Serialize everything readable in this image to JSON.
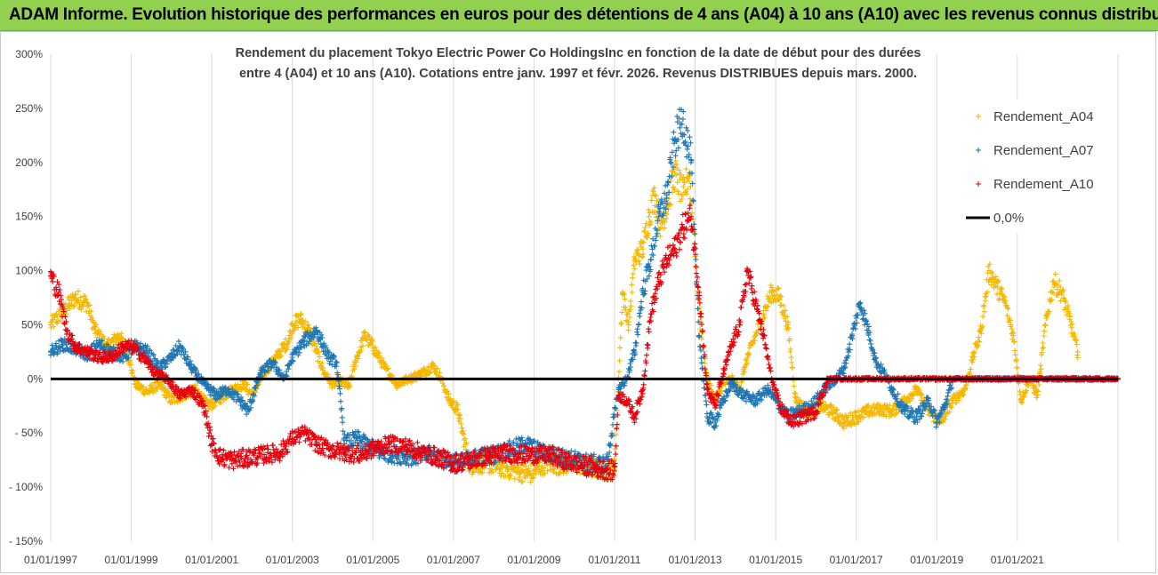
{
  "banner": {
    "title": "ADAM Informe. Evolution historique des performances en euros pour des détentions de 4 ans (A04) à 10 ans (A10) avec les revenus connus distribués",
    "background": "#92d050"
  },
  "chart_data": {
    "type": "scatter",
    "title_line1": "Rendement du placement Tokyo Electric Power Co HoldingsInc en fonction de la date de début pour des durées",
    "title_line2": "entre 4 (A04) et 10 ans (A10). Cotations entre janv. 1997 et févr.  2026. Revenus DISTRIBUES depuis mars. 2000.",
    "x_axis": {
      "type": "date",
      "range": [
        1997.0,
        2023.5
      ],
      "tick_years": [
        1997,
        1999,
        2001,
        2003,
        2005,
        2007,
        2009,
        2011,
        2013,
        2015,
        2017,
        2019,
        2021
      ],
      "tick_labels": [
        "01/01/1997",
        "01/01/1999",
        "01/01/2001",
        "01/01/2003",
        "01/01/2005",
        "01/01/2007",
        "01/01/2009",
        "01/01/2011",
        "01/01/2013",
        "01/01/2015",
        "01/01/2017",
        "01/01/2019",
        "01/01/2021"
      ]
    },
    "y_axis": {
      "range": [
        -150,
        300
      ],
      "ticks": [
        300,
        250,
        200,
        150,
        100,
        50,
        0,
        -50,
        -100,
        -150
      ],
      "tick_labels": [
        "300%",
        "250%",
        "200%",
        "150%",
        "100%",
        "50%",
        "0%",
        "- 50%",
        "- 100%",
        "- 150%"
      ]
    },
    "grid": "vertical",
    "legend_position": "top-right",
    "reference_line": {
      "name": "0,0%",
      "value": 0,
      "color": "#000000"
    },
    "series": [
      {
        "name": "Rendement_A04",
        "color": "#f5b800",
        "points": [
          [
            1997.0,
            50
          ],
          [
            1997.3,
            62
          ],
          [
            1997.6,
            75
          ],
          [
            1997.9,
            70
          ],
          [
            1998.1,
            45
          ],
          [
            1998.4,
            30
          ],
          [
            1998.7,
            40
          ],
          [
            1998.9,
            25
          ],
          [
            1999.1,
            -5
          ],
          [
            1999.4,
            -12
          ],
          [
            1999.7,
            -5
          ],
          [
            2000.0,
            -20
          ],
          [
            2000.3,
            -15
          ],
          [
            2000.6,
            -10
          ],
          [
            2000.9,
            -25
          ],
          [
            2001.2,
            -18
          ],
          [
            2001.5,
            -10
          ],
          [
            2001.8,
            -5
          ],
          [
            2002.0,
            -15
          ],
          [
            2002.3,
            5
          ],
          [
            2002.6,
            20
          ],
          [
            2002.9,
            35
          ],
          [
            2003.0,
            50
          ],
          [
            2003.2,
            55
          ],
          [
            2003.4,
            45
          ],
          [
            2003.6,
            25
          ],
          [
            2003.8,
            5
          ],
          [
            2004.0,
            -5
          ],
          [
            2004.2,
            -2
          ],
          [
            2004.4,
            -8
          ],
          [
            2004.6,
            20
          ],
          [
            2004.8,
            40
          ],
          [
            2005.0,
            30
          ],
          [
            2005.3,
            10
          ],
          [
            2005.6,
            -5
          ],
          [
            2005.9,
            0
          ],
          [
            2006.2,
            5
          ],
          [
            2006.5,
            12
          ],
          [
            2006.7,
            0
          ],
          [
            2006.9,
            -20
          ],
          [
            2007.1,
            -28
          ],
          [
            2007.4,
            -80
          ],
          [
            2007.8,
            -78
          ],
          [
            2008.2,
            -82
          ],
          [
            2008.6,
            -85
          ],
          [
            2008.9,
            -88
          ],
          [
            2009.3,
            -78
          ],
          [
            2009.7,
            -80
          ],
          [
            2010.0,
            -78
          ],
          [
            2010.4,
            -82
          ],
          [
            2010.8,
            -85
          ],
          [
            2011.0,
            -82
          ],
          [
            2011.1,
            0
          ],
          [
            2011.2,
            80
          ],
          [
            2011.35,
            50
          ],
          [
            2011.5,
            110
          ],
          [
            2011.7,
            120
          ],
          [
            2011.85,
            150
          ],
          [
            2012.0,
            170
          ],
          [
            2012.15,
            140
          ],
          [
            2012.3,
            160
          ],
          [
            2012.5,
            190
          ],
          [
            2012.7,
            170
          ],
          [
            2012.85,
            190
          ],
          [
            2013.0,
            120
          ],
          [
            2013.1,
            60
          ],
          [
            2013.3,
            0
          ],
          [
            2013.5,
            -20
          ],
          [
            2013.7,
            -5
          ],
          [
            2013.9,
            0
          ],
          [
            2014.1,
            -10
          ],
          [
            2014.3,
            20
          ],
          [
            2014.5,
            40
          ],
          [
            2014.7,
            60
          ],
          [
            2014.9,
            80
          ],
          [
            2015.1,
            75
          ],
          [
            2015.3,
            50
          ],
          [
            2015.5,
            -20
          ],
          [
            2015.8,
            -30
          ],
          [
            2016.1,
            -25
          ],
          [
            2016.4,
            -30
          ],
          [
            2016.7,
            -40
          ],
          [
            2017.0,
            -35
          ],
          [
            2017.3,
            -30
          ],
          [
            2017.6,
            -28
          ],
          [
            2017.9,
            -30
          ],
          [
            2018.2,
            -20
          ],
          [
            2018.5,
            -10
          ],
          [
            2018.8,
            -30
          ],
          [
            2019.1,
            -40
          ],
          [
            2019.4,
            -20
          ],
          [
            2019.7,
            -10
          ],
          [
            2019.9,
            20
          ],
          [
            2020.1,
            45
          ],
          [
            2020.3,
            100
          ],
          [
            2020.5,
            85
          ],
          [
            2020.7,
            70
          ],
          [
            2020.9,
            40
          ],
          [
            2021.1,
            -20
          ],
          [
            2021.3,
            0
          ],
          [
            2021.5,
            -15
          ],
          [
            2021.7,
            50
          ],
          [
            2021.9,
            90
          ],
          [
            2022.1,
            80
          ],
          [
            2022.3,
            55
          ],
          [
            2022.5,
            25
          ]
        ]
      },
      {
        "name": "Rendement_A07",
        "color": "#1f77b4",
        "points": [
          [
            1997.0,
            25
          ],
          [
            1997.3,
            32
          ],
          [
            1997.6,
            28
          ],
          [
            1997.9,
            22
          ],
          [
            1998.2,
            32
          ],
          [
            1998.5,
            25
          ],
          [
            1998.8,
            20
          ],
          [
            1999.1,
            30
          ],
          [
            1999.4,
            25
          ],
          [
            1999.7,
            10
          ],
          [
            2000.0,
            20
          ],
          [
            2000.2,
            30
          ],
          [
            2000.5,
            10
          ],
          [
            2000.8,
            -5
          ],
          [
            2001.1,
            -15
          ],
          [
            2001.4,
            -10
          ],
          [
            2001.7,
            -20
          ],
          [
            2001.9,
            -30
          ],
          [
            2002.2,
            5
          ],
          [
            2002.5,
            15
          ],
          [
            2002.8,
            0
          ],
          [
            2003.0,
            20
          ],
          [
            2003.3,
            35
          ],
          [
            2003.6,
            45
          ],
          [
            2003.9,
            20
          ],
          [
            2004.1,
            15
          ],
          [
            2004.3,
            -60
          ],
          [
            2004.6,
            -55
          ],
          [
            2004.9,
            -62
          ],
          [
            2005.2,
            -68
          ],
          [
            2005.6,
            -70
          ],
          [
            2006.0,
            -72
          ],
          [
            2006.4,
            -70
          ],
          [
            2006.8,
            -75
          ],
          [
            2007.2,
            -78
          ],
          [
            2007.6,
            -72
          ],
          [
            2008.0,
            -70
          ],
          [
            2008.4,
            -65
          ],
          [
            2008.8,
            -60
          ],
          [
            2009.2,
            -68
          ],
          [
            2009.6,
            -72
          ],
          [
            2010.0,
            -75
          ],
          [
            2010.4,
            -78
          ],
          [
            2010.8,
            -80
          ],
          [
            2011.1,
            -10
          ],
          [
            2011.3,
            0
          ],
          [
            2011.5,
            25
          ],
          [
            2011.7,
            80
          ],
          [
            2011.9,
            110
          ],
          [
            2012.1,
            150
          ],
          [
            2012.3,
            170
          ],
          [
            2012.5,
            220
          ],
          [
            2012.7,
            240
          ],
          [
            2012.9,
            200
          ],
          [
            2013.1,
            40
          ],
          [
            2013.3,
            -35
          ],
          [
            2013.5,
            -40
          ],
          [
            2013.7,
            -20
          ],
          [
            2013.9,
            -5
          ],
          [
            2014.2,
            -15
          ],
          [
            2014.5,
            -20
          ],
          [
            2014.8,
            -10
          ],
          [
            2015.0,
            -20
          ],
          [
            2015.3,
            -35
          ],
          [
            2015.6,
            -30
          ],
          [
            2015.9,
            -25
          ],
          [
            2016.2,
            -10
          ],
          [
            2016.5,
            0
          ],
          [
            2016.7,
            10
          ],
          [
            2016.9,
            40
          ],
          [
            2017.1,
            70
          ],
          [
            2017.3,
            45
          ],
          [
            2017.5,
            15
          ],
          [
            2017.7,
            5
          ],
          [
            2017.9,
            -10
          ],
          [
            2018.2,
            -30
          ],
          [
            2018.5,
            -35
          ],
          [
            2018.8,
            -20
          ],
          [
            2019.0,
            -40
          ],
          [
            2019.2,
            -25
          ],
          [
            2019.4,
            0
          ],
          [
            2019.7,
            0
          ],
          [
            2020.0,
            0
          ],
          [
            2020.4,
            0
          ],
          [
            2020.8,
            0
          ],
          [
            2021.2,
            0
          ],
          [
            2021.6,
            0
          ],
          [
            2022.0,
            0
          ],
          [
            2022.4,
            0
          ],
          [
            2022.8,
            0
          ],
          [
            2023.2,
            0
          ],
          [
            2023.5,
            0
          ]
        ]
      },
      {
        "name": "Rendement_A10",
        "color": "#e8000b",
        "points": [
          [
            1997.0,
            95
          ],
          [
            1997.2,
            80
          ],
          [
            1997.4,
            45
          ],
          [
            1997.6,
            30
          ],
          [
            1997.9,
            25
          ],
          [
            1998.2,
            20
          ],
          [
            1998.5,
            20
          ],
          [
            1998.8,
            30
          ],
          [
            1999.0,
            30
          ],
          [
            1999.3,
            20
          ],
          [
            1999.6,
            5
          ],
          [
            1999.9,
            0
          ],
          [
            2000.2,
            -15
          ],
          [
            2000.5,
            -10
          ],
          [
            2000.8,
            -25
          ],
          [
            2001.0,
            -60
          ],
          [
            2001.2,
            -72
          ],
          [
            2001.5,
            -75
          ],
          [
            2001.9,
            -73
          ],
          [
            2002.3,
            -70
          ],
          [
            2002.7,
            -68
          ],
          [
            2003.0,
            -55
          ],
          [
            2003.3,
            -50
          ],
          [
            2003.6,
            -60
          ],
          [
            2003.9,
            -65
          ],
          [
            2004.3,
            -68
          ],
          [
            2004.7,
            -70
          ],
          [
            2005.0,
            -65
          ],
          [
            2005.4,
            -60
          ],
          [
            2005.8,
            -62
          ],
          [
            2006.2,
            -68
          ],
          [
            2006.6,
            -72
          ],
          [
            2007.0,
            -78
          ],
          [
            2007.4,
            -75
          ],
          [
            2007.8,
            -72
          ],
          [
            2008.2,
            -68
          ],
          [
            2008.6,
            -70
          ],
          [
            2009.0,
            -70
          ],
          [
            2009.4,
            -70
          ],
          [
            2009.8,
            -76
          ],
          [
            2010.2,
            -80
          ],
          [
            2010.6,
            -83
          ],
          [
            2011.0,
            -85
          ],
          [
            2011.1,
            -15
          ],
          [
            2011.3,
            -20
          ],
          [
            2011.5,
            -35
          ],
          [
            2011.7,
            -10
          ],
          [
            2011.9,
            60
          ],
          [
            2012.1,
            90
          ],
          [
            2012.3,
            110
          ],
          [
            2012.5,
            120
          ],
          [
            2012.7,
            140
          ],
          [
            2012.9,
            150
          ],
          [
            2013.1,
            80
          ],
          [
            2013.3,
            -10
          ],
          [
            2013.5,
            -25
          ],
          [
            2013.7,
            5
          ],
          [
            2013.9,
            30
          ],
          [
            2014.1,
            50
          ],
          [
            2014.3,
            100
          ],
          [
            2014.5,
            70
          ],
          [
            2014.7,
            40
          ],
          [
            2014.9,
            0
          ],
          [
            2015.1,
            -25
          ],
          [
            2015.4,
            -40
          ],
          [
            2015.7,
            -35
          ],
          [
            2016.0,
            -30
          ],
          [
            2016.3,
            0
          ],
          [
            2016.8,
            0
          ],
          [
            2017.3,
            0
          ],
          [
            2017.8,
            0
          ],
          [
            2018.3,
            0
          ],
          [
            2018.8,
            0
          ],
          [
            2019.3,
            0
          ],
          [
            2019.8,
            0
          ],
          [
            2020.3,
            0
          ],
          [
            2020.8,
            0
          ],
          [
            2021.3,
            0
          ],
          [
            2021.8,
            0
          ],
          [
            2022.3,
            0
          ],
          [
            2022.8,
            0
          ],
          [
            2023.3,
            0
          ],
          [
            2023.5,
            0
          ]
        ]
      }
    ]
  }
}
